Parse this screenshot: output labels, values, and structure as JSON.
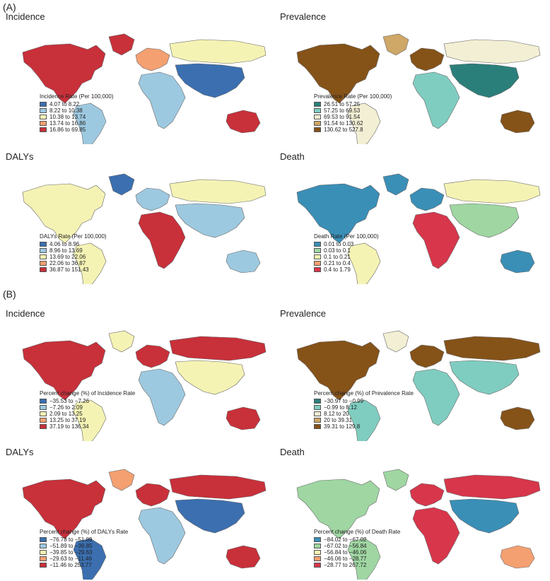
{
  "sections": [
    {
      "label": "(A)",
      "panels": [
        {
          "title": "Incidence",
          "legend_title": "Incidence Rate (Per 100,000)",
          "palette": "spectral",
          "legend": [
            {
              "label": "4.07 to 8.22",
              "color": "#3b6fb0"
            },
            {
              "label": "8.22 to 10.38",
              "color": "#9dc9e0"
            },
            {
              "label": "10.38 to 13.74",
              "color": "#f5f3b4"
            },
            {
              "label": "13.74 to 16.86",
              "color": "#f4a071"
            },
            {
              "label": "16.86 to 69.85",
              "color": "#c8303a"
            }
          ],
          "regions": {
            "northamerica": 4,
            "greenland": 4,
            "southamerica": 1,
            "europe": 3,
            "africa": 1,
            "russia": 2,
            "asia": 0,
            "australia": 4
          }
        },
        {
          "title": "Prevalence",
          "legend_title": "Prevalence Rate (Per 100,000)",
          "palette": "brown",
          "legend": [
            {
              "label": "26.51 to 57.25",
              "color": "#2b7f7a"
            },
            {
              "label": "57.25 to 69.53",
              "color": "#7fcdc0"
            },
            {
              "label": "69.53 to 91.54",
              "color": "#f3efd4"
            },
            {
              "label": "91.54 to 130.62",
              "color": "#cfa767"
            },
            {
              "label": "130.62 to 527.8",
              "color": "#855218"
            }
          ],
          "regions": {
            "northamerica": 4,
            "greenland": 3,
            "southamerica": 2,
            "europe": 4,
            "africa": 1,
            "russia": 2,
            "asia": 0,
            "australia": 4
          }
        },
        {
          "title": "DALYs",
          "legend_title": "DALYs Rate (Per 100,000)",
          "palette": "spectral",
          "legend": [
            {
              "label": "4.06 to 8.96",
              "color": "#3b6fb0"
            },
            {
              "label": "8.96 to 13.69",
              "color": "#9dc9e0"
            },
            {
              "label": "13.69 to 22.06",
              "color": "#f5f3b4"
            },
            {
              "label": "22.06 to 36.87",
              "color": "#f4a071"
            },
            {
              "label": "36.87 to 151.43",
              "color": "#c8303a"
            }
          ],
          "regions": {
            "northamerica": 2,
            "greenland": 0,
            "southamerica": 2,
            "europe": 1,
            "africa": 4,
            "russia": 2,
            "asia": 1,
            "australia": 1
          }
        },
        {
          "title": "Death",
          "legend_title": "Death Rate (Per 100,000)",
          "palette": "teal",
          "legend": [
            {
              "label": "0.01 to 0.03",
              "color": "#3a8fb7"
            },
            {
              "label": "0.03 to 0.1",
              "color": "#9fd6a2"
            },
            {
              "label": "0.1 to 0.21",
              "color": "#f5f3b4"
            },
            {
              "label": "0.21 to 0.4",
              "color": "#f4a071"
            },
            {
              "label": "0.4 to 1.79",
              "color": "#d7364b"
            }
          ],
          "regions": {
            "northamerica": 0,
            "greenland": 0,
            "southamerica": 2,
            "europe": 0,
            "africa": 4,
            "russia": 2,
            "asia": 1,
            "australia": 0
          }
        }
      ]
    },
    {
      "label": "(B)",
      "panels": [
        {
          "title": "Incidence",
          "legend_title": "Percent change (%) of Incidence Rate",
          "palette": "spectral",
          "legend": [
            {
              "label": "−35.53 to −7.26",
              "color": "#3b6fb0"
            },
            {
              "label": "−7.26 to 2.09",
              "color": "#9dc9e0"
            },
            {
              "label": "2.09 to 13.25",
              "color": "#f5f3b4"
            },
            {
              "label": "13.25 to 37.19",
              "color": "#f4a071"
            },
            {
              "label": "37.19 to 136.34",
              "color": "#c8303a"
            }
          ],
          "regions": {
            "northamerica": 4,
            "greenland": 2,
            "southamerica": 2,
            "europe": 4,
            "africa": 1,
            "russia": 4,
            "asia": 2,
            "australia": 4
          }
        },
        {
          "title": "Prevalence",
          "legend_title": "Percent change (%) of Prevalence Rate",
          "palette": "brown",
          "legend": [
            {
              "label": "−30.97 to −0.99",
              "color": "#2b7f7a"
            },
            {
              "label": "−0.99 to 8.12",
              "color": "#7fcdc0"
            },
            {
              "label": "8.12 to 20",
              "color": "#f3efd4"
            },
            {
              "label": "20 to 39.31",
              "color": "#cfa767"
            },
            {
              "label": "39.31 to 129.8",
              "color": "#855218"
            }
          ],
          "regions": {
            "northamerica": 4,
            "greenland": 2,
            "southamerica": 1,
            "europe": 4,
            "africa": 1,
            "russia": 4,
            "asia": 1,
            "australia": 4
          }
        },
        {
          "title": "DALYs",
          "legend_title": "Percent change (%) of DALYs Rate",
          "palette": "spectral",
          "legend": [
            {
              "label": "−76.78 to −51.89",
              "color": "#3b6fb0"
            },
            {
              "label": "−51.89 to −39.85",
              "color": "#9dc9e0"
            },
            {
              "label": "−39.85 to −29.63",
              "color": "#f5f3b4"
            },
            {
              "label": "−29.63 to −11.46",
              "color": "#f4a071"
            },
            {
              "label": "−11.46 to 253.77",
              "color": "#c8303a"
            }
          ],
          "regions": {
            "northamerica": 4,
            "greenland": 3,
            "southamerica": 0,
            "europe": 4,
            "africa": 1,
            "russia": 4,
            "asia": 0,
            "australia": 4
          }
        },
        {
          "title": "Death",
          "legend_title": "Percent change (%) of Death Rate",
          "palette": "teal",
          "legend": [
            {
              "label": "−84.02 to −67.02",
              "color": "#3a8fb7"
            },
            {
              "label": "−67.02 to −56.84",
              "color": "#9fd6a2"
            },
            {
              "label": "−56.84 to −46.06",
              "color": "#f5f3b4"
            },
            {
              "label": "−46.06 to −28.77",
              "color": "#f4a071"
            },
            {
              "label": "−28.77 to 267.72",
              "color": "#d7364b"
            }
          ],
          "regions": {
            "northamerica": 1,
            "greenland": 1,
            "southamerica": 1,
            "europe": 4,
            "africa": 4,
            "russia": 4,
            "asia": 0,
            "australia": 3
          }
        }
      ]
    }
  ]
}
